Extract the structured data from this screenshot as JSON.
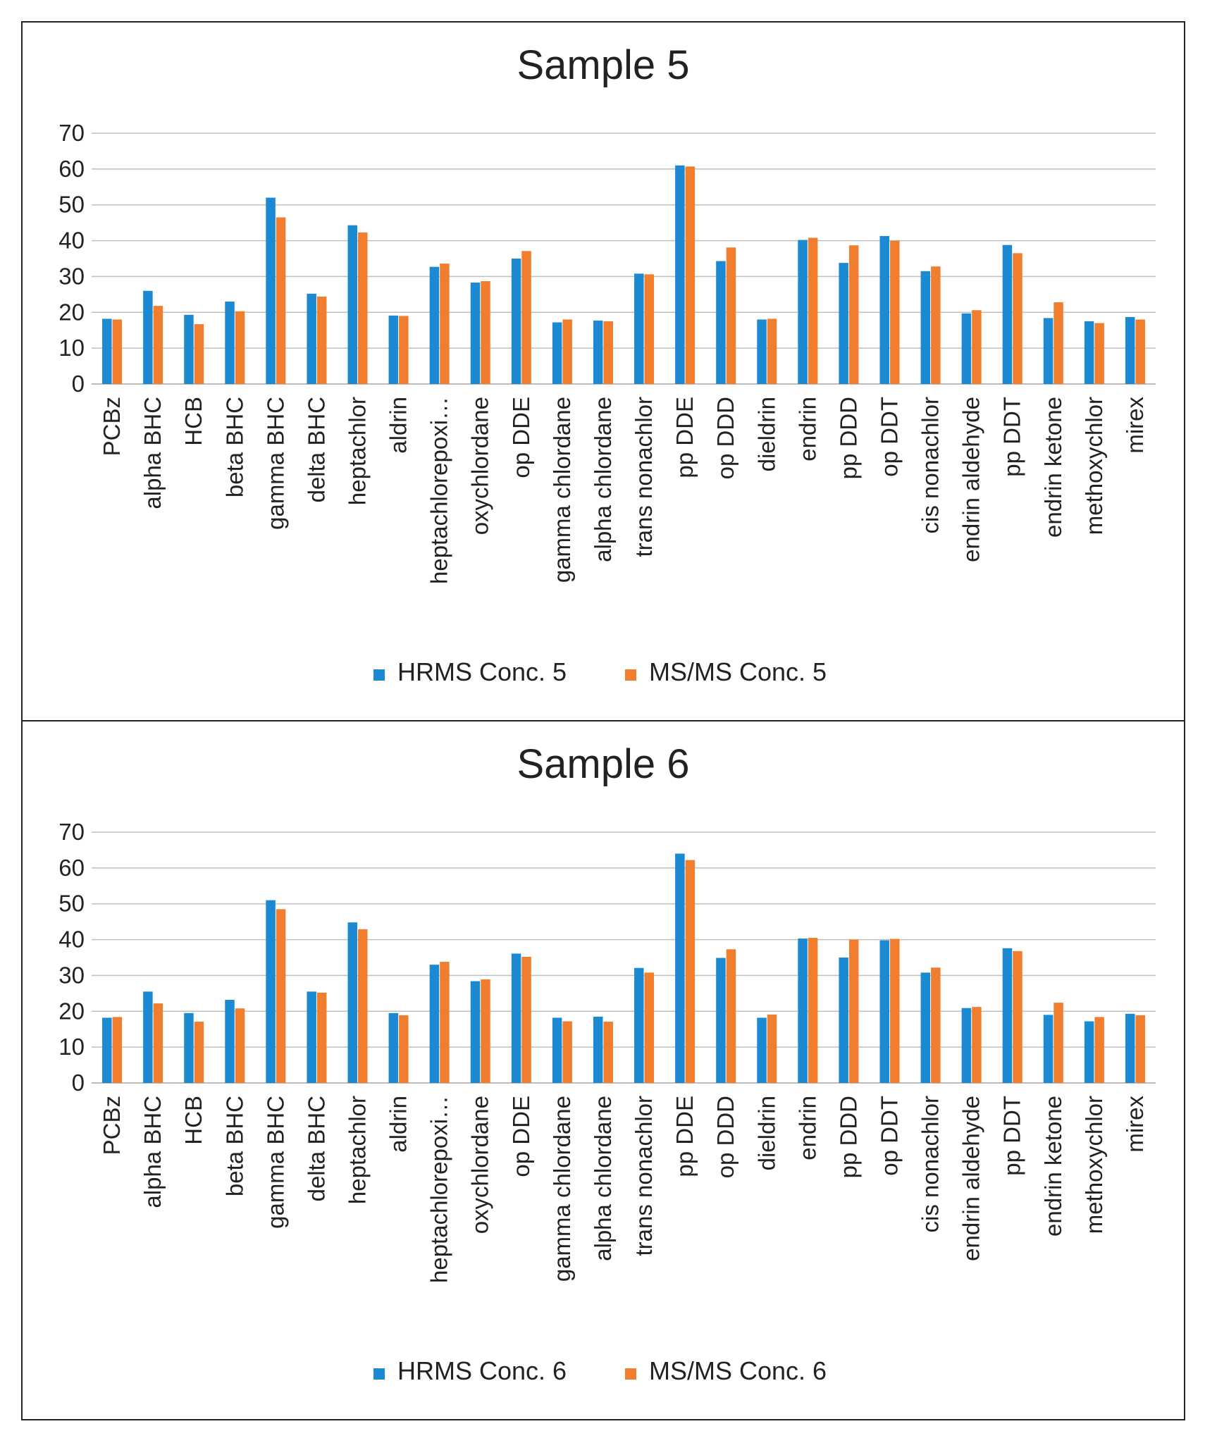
{
  "colors": {
    "hrms": "#1B8AD3",
    "msms": "#F07E2E",
    "grid": "#BFBFBF",
    "text": "#222222"
  },
  "chart_data": [
    {
      "type": "bar",
      "title": "Sample 5",
      "xlabel": "",
      "ylabel": "",
      "ylim": [
        0,
        70
      ],
      "yticks": [
        0,
        10,
        20,
        30,
        40,
        50,
        60,
        70
      ],
      "grid": true,
      "legend_position": "bottom",
      "categories": [
        "PCBz",
        "alpha BHC",
        "HCB",
        "beta BHC",
        "gamma BHC",
        "delta BHC",
        "heptachlor",
        "aldrin",
        "heptachlorepoxi…",
        "oxychlordane",
        "op DDE",
        "gamma chlordane",
        "alpha chlordane",
        "trans nonachlor",
        "pp DDE",
        "op DDD",
        "dieldrin",
        "endrin",
        "pp DDD",
        "op DDT",
        "cis nonachlor",
        "endrin aldehyde",
        "pp DDT",
        "endrin ketone",
        "methoxychlor",
        "mirex"
      ],
      "series": [
        {
          "name": "HRMS Conc. 5",
          "values": [
            18.2,
            26,
            19.3,
            23,
            52,
            25.2,
            44.3,
            19.1,
            32.7,
            28.3,
            35,
            17.2,
            17.7,
            30.8,
            61,
            34.3,
            18,
            40.2,
            33.8,
            41.3,
            31.5,
            19.7,
            38.8,
            18.4,
            17.5,
            18.7
          ]
        },
        {
          "name": "MS/MS Conc. 5",
          "values": [
            18,
            21.8,
            16.7,
            20.3,
            46.5,
            24.4,
            42.3,
            19,
            33.6,
            28.7,
            37.1,
            18,
            17.5,
            30.6,
            60.7,
            38.1,
            18.2,
            40.8,
            38.7,
            40,
            32.8,
            20.6,
            36.5,
            22.8,
            17,
            18
          ]
        }
      ]
    },
    {
      "type": "bar",
      "title": "Sample 6",
      "xlabel": "",
      "ylabel": "",
      "ylim": [
        0,
        70
      ],
      "yticks": [
        0,
        10,
        20,
        30,
        40,
        50,
        60,
        70
      ],
      "grid": true,
      "legend_position": "bottom",
      "categories": [
        "PCBz",
        "alpha BHC",
        "HCB",
        "beta BHC",
        "gamma BHC",
        "delta BHC",
        "heptachlor",
        "aldrin",
        "heptachlorepoxi…",
        "oxychlordane",
        "op DDE",
        "gamma chlordane",
        "alpha chlordane",
        "trans nonachlor",
        "pp DDE",
        "op DDD",
        "dieldrin",
        "endrin",
        "pp DDD",
        "op DDT",
        "cis nonachlor",
        "endrin aldehyde",
        "pp DDT",
        "endrin ketone",
        "methoxychlor",
        "mirex"
      ],
      "series": [
        {
          "name": "HRMS Conc. 6",
          "values": [
            18.2,
            25.5,
            19.5,
            23.2,
            51,
            25.5,
            44.8,
            19.5,
            33,
            28.4,
            36.1,
            18.2,
            18.5,
            32.1,
            64,
            34.9,
            18.2,
            40.3,
            35,
            39.8,
            30.8,
            20.9,
            37.6,
            19,
            17.2,
            19.3
          ]
        },
        {
          "name": "MS/MS Conc. 6",
          "values": [
            18.4,
            22.2,
            17.1,
            20.8,
            48.5,
            25.2,
            42.9,
            18.9,
            33.8,
            28.9,
            35.2,
            17.2,
            17.1,
            30.8,
            62.2,
            37.3,
            19.1,
            40.5,
            40,
            40.2,
            32.2,
            21.2,
            36.8,
            22.4,
            18.4,
            18.9
          ]
        }
      ]
    }
  ]
}
